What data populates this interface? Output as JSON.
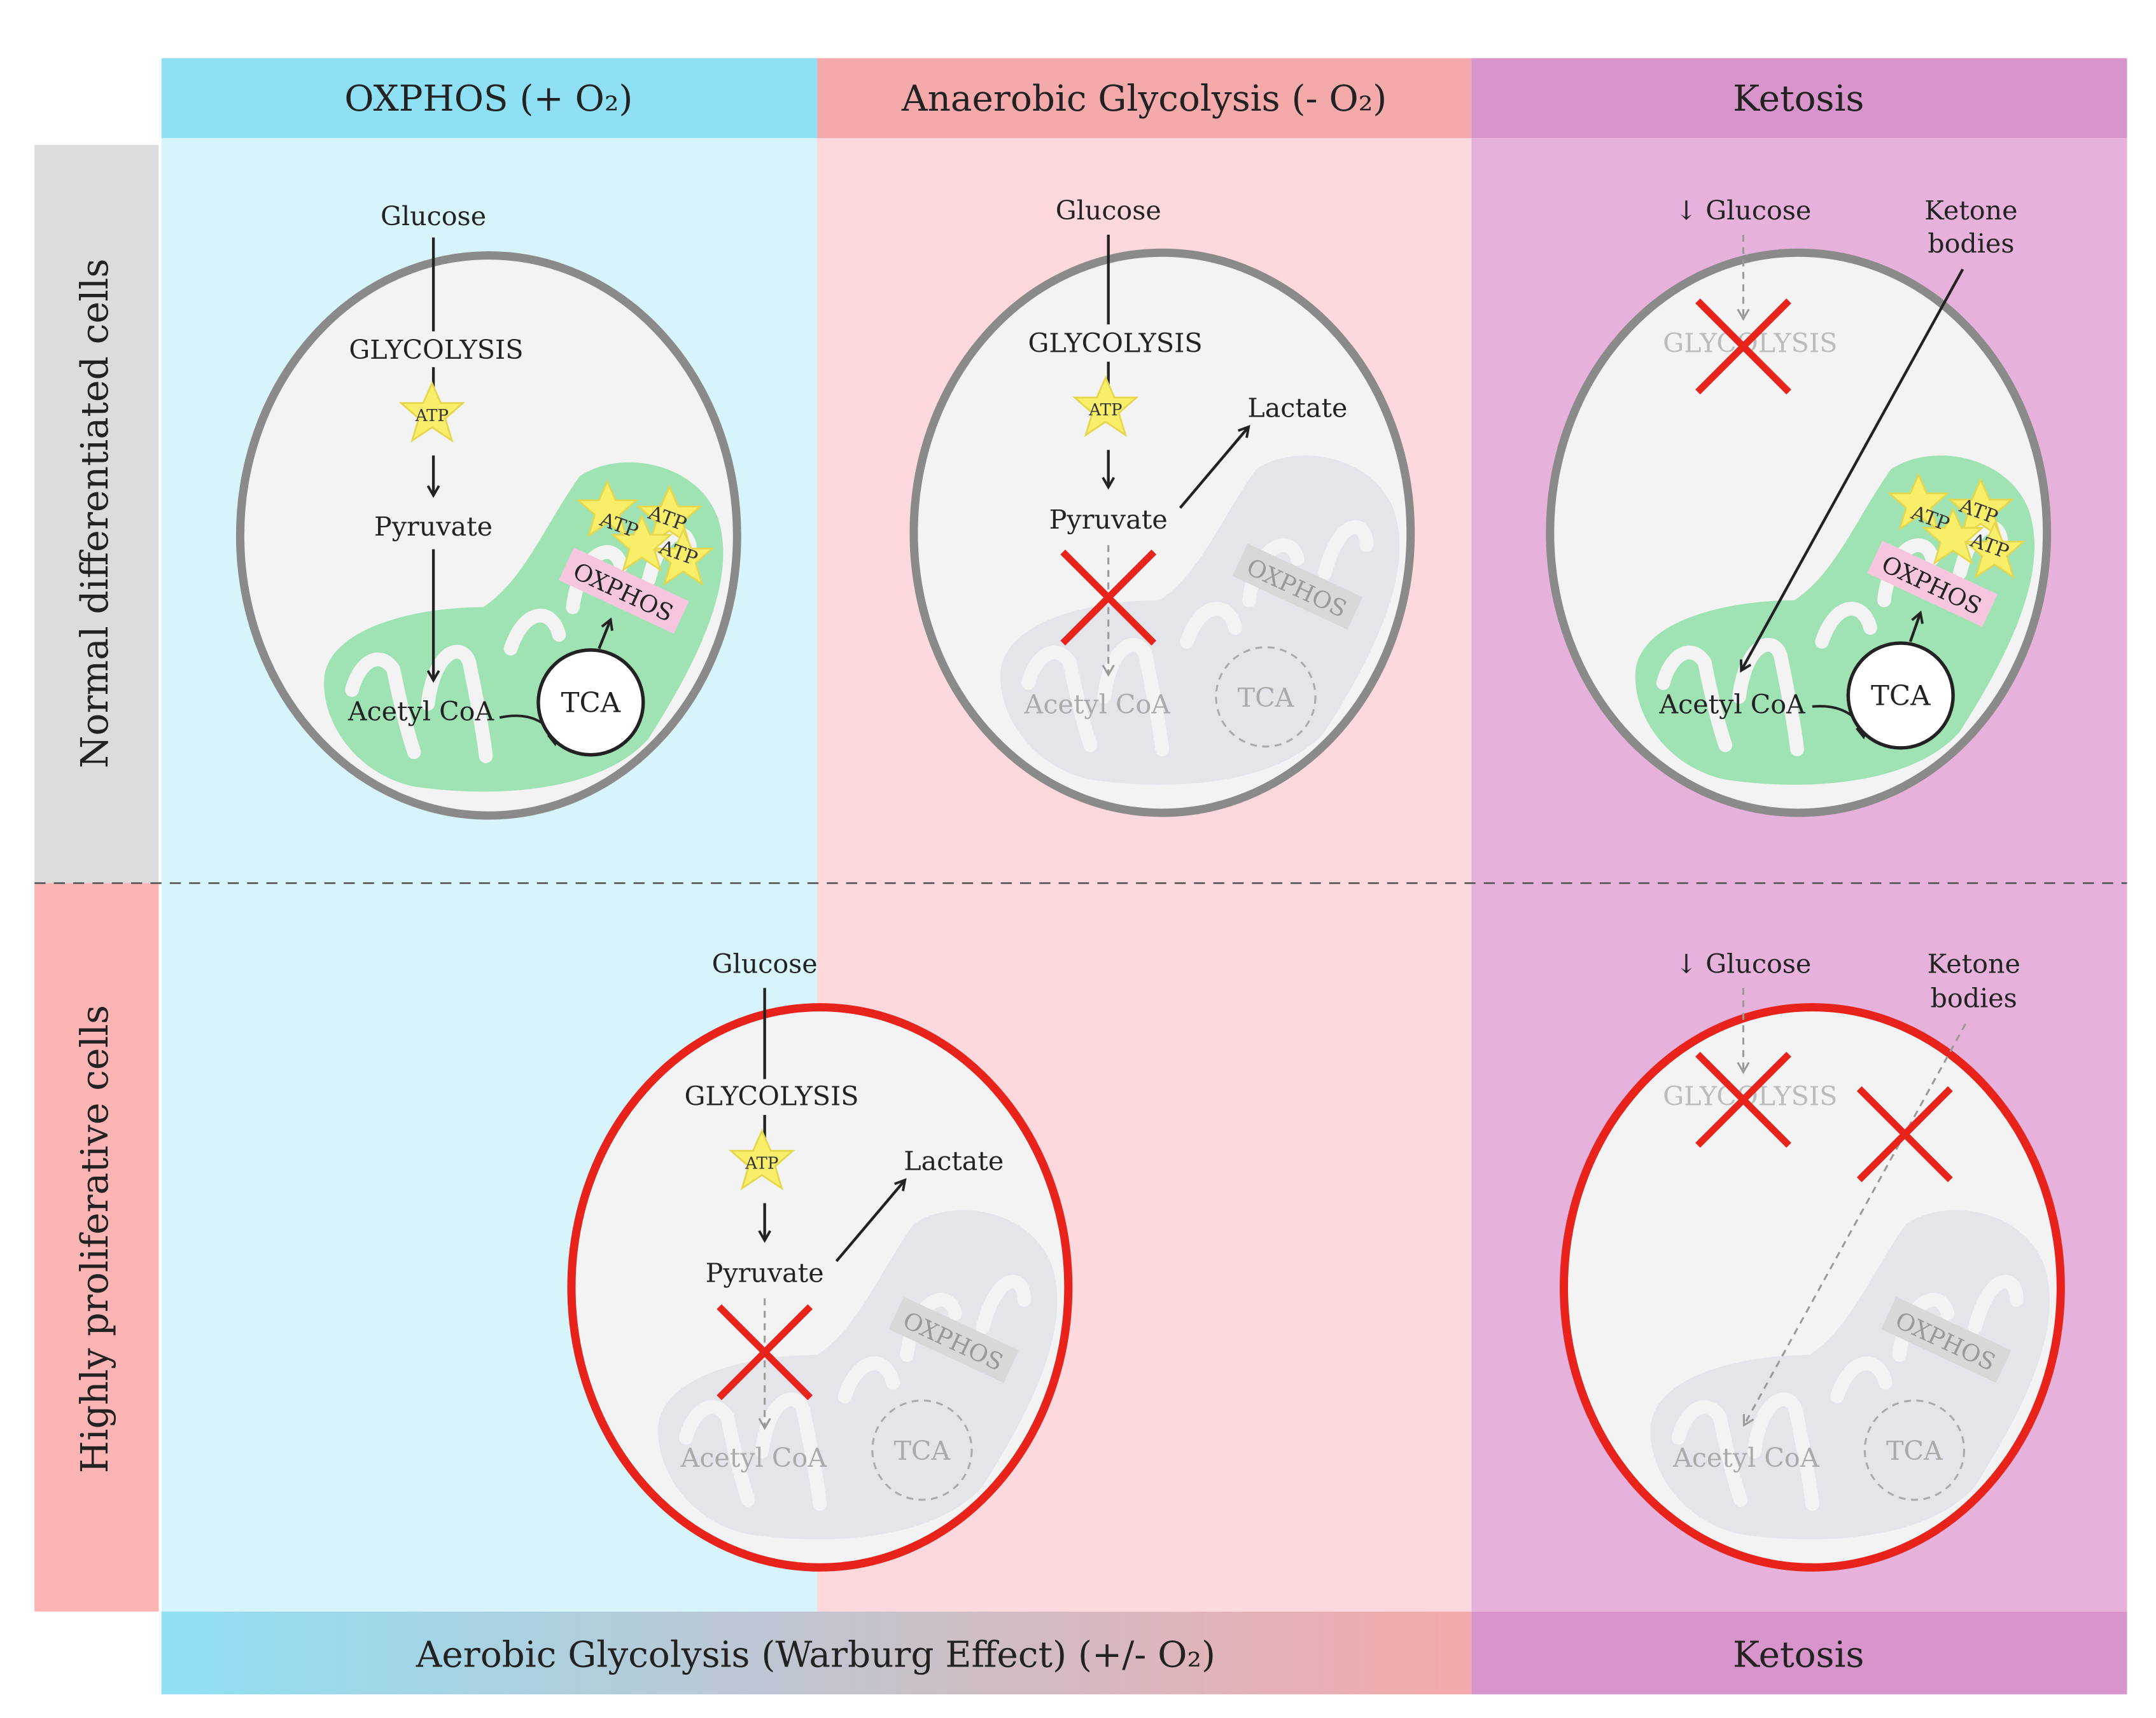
{
  "columns": {
    "oxphos": {
      "header": "OXPHOS (+ O₂)",
      "color": "#8fe0f4",
      "bg": "#d8f4fb"
    },
    "anaerobic": {
      "header": "Anaerobic Glycolysis (- O₂)",
      "color": "#f4a9aa",
      "bg": "#fdd9dd"
    },
    "ketosis": {
      "header": "Ketosis",
      "color": "#d895cc",
      "bg": "#e6b2db"
    }
  },
  "rows": {
    "normal": {
      "label": "Normal differentiated cells",
      "color": "#dcdcdc"
    },
    "proliferative": {
      "label": "Highly proliferative cells",
      "color": "#fcb4b5"
    }
  },
  "footer": {
    "warburg": "Aerobic Glycolysis (Warburg Effect) (+/- O₂)",
    "ketosis": "Ketosis"
  },
  "labels": {
    "glucose": "Glucose",
    "reduced_glucose": "↓ Glucose",
    "glycolysis": "GLYCOLYSIS",
    "atp": "ATP",
    "pyruvate": "Pyruvate",
    "acetyl_coa": "Acetyl CoA",
    "tca": "TCA",
    "oxphos": "OXPHOS",
    "lactate": "Lactate",
    "ketone_line1": "Ketone",
    "ketone_line2": "bodies"
  },
  "colors": {
    "mito_active": "#9fe3b4",
    "mito_inactive": "#e3e5ea",
    "cell_normal_border": "#8a8a8a",
    "cell_prolif_border": "#e8231c",
    "cell_fill": "#f3f3f3",
    "blocked_x": "#e8231c",
    "atp_star": "#f9ee6a",
    "oxphos_label_bg": "#f5c6dd"
  }
}
